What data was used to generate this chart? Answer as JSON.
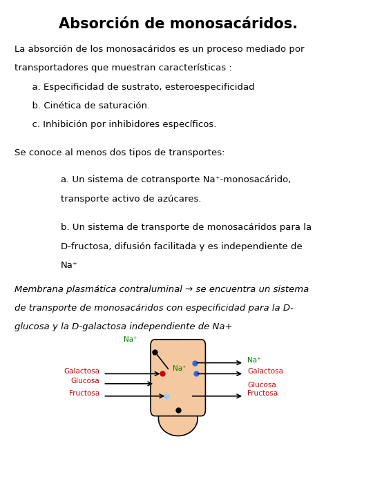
{
  "title": "Absorción de monosacáridos.",
  "title_fontsize": 15,
  "body_fontsize": 9.5,
  "background_color": "#ffffff",
  "text_color": "#000000",
  "red_color": "#cc0000",
  "green_color": "#008000",
  "cell_fill": "#f5c9a0",
  "cell_edge": "#000000",
  "paragraph1_lines": [
    "La absorción de los monosacáridos es un proceso mediado por",
    "transportadores que muestran características :",
    "      a. Especificidad de sustrato, esteroespecificidad",
    "      b. Cinética de saturación.",
    "      c. Inhibición por inhibidores específicos."
  ],
  "paragraph2_line": "Se conoce al menos dos tipos de transportes:",
  "paragraph3_lines": [
    "a. Un sistema de cotransporte Na⁺-monosacárido,",
    "transporte activo de azúcares."
  ],
  "paragraph4_lines": [
    "b. Un sistema de transporte de monosacáridos para la",
    "D-fructosa, difusión facilitada y es independiente de",
    "Na⁺"
  ],
  "paragraph5_lines": [
    "Membrana plasmática contraluminal → se encuentra un sistema",
    "de transporte de monosacáridos con especificidad para la D-",
    "glucosa y la D-galactosa independiente de Na+"
  ]
}
